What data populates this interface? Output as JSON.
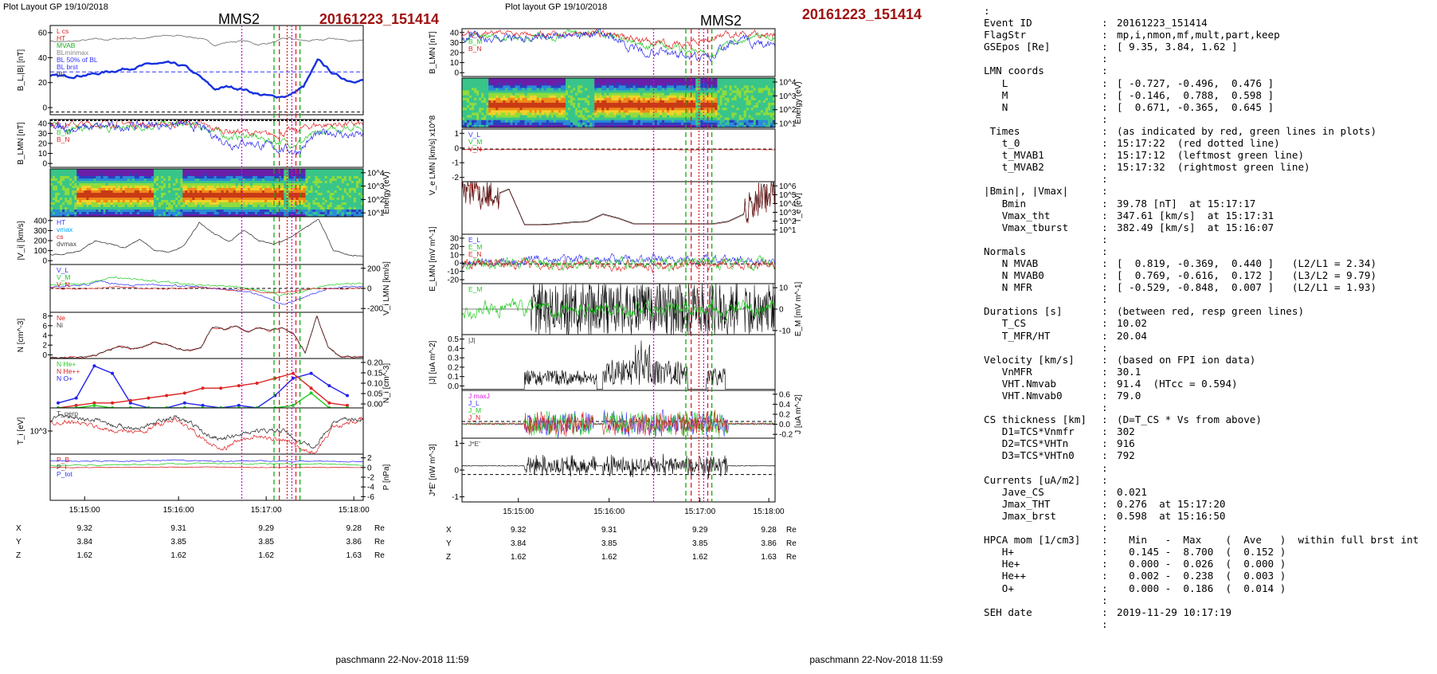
{
  "left_plot": {
    "top_label": "Plot Layout GP 19/10/2018",
    "title": "MMS2",
    "event": "20161223_151414",
    "footer": "paschmann 22-Nov-2018 11:59",
    "panels": [
      {
        "key": "b",
        "ylabel": "B_L,|B| [nT]",
        "ticks": [
          "60",
          "40",
          "20",
          "0"
        ],
        "legend": [
          [
            "L cs",
            "#d22"
          ],
          [
            "HT",
            "#d22"
          ],
          [
            "MVAB",
            "#2a2"
          ],
          [
            "BLminmax",
            "#888"
          ],
          [
            "BL 50% of BL",
            "#33f"
          ],
          [
            "BL brst",
            "#33f"
          ],
          [
            "|B|",
            "#444"
          ]
        ]
      },
      {
        "key": "blmn",
        "ylabel": "B_LMN [nT]",
        "ticks": [
          "40",
          "30",
          "20",
          "10",
          "0"
        ],
        "legend": [
          [
            "B_L",
            "#33f"
          ],
          [
            "B_M",
            "#2c2"
          ],
          [
            "B_N",
            "#d22"
          ]
        ]
      },
      {
        "key": "spec",
        "ylabel": "Energy (eV)",
        "ticks": [
          "10^4",
          "10^3",
          "10^2",
          "10^1"
        ]
      },
      {
        "key": "vi",
        "ylabel": "|V_i| [km/s]",
        "ticks": [
          "400",
          "300",
          "200",
          "100",
          "0"
        ],
        "legend": [
          [
            "HT",
            "#33f"
          ],
          [
            "vmax",
            "#0af"
          ],
          [
            "cs",
            "#d22"
          ],
          [
            "dvmax",
            "#444"
          ]
        ]
      },
      {
        "key": "vilmn",
        "ylabel": "V_i LMN [km/s]",
        "ticks": [
          "200",
          "0",
          "-200"
        ],
        "legend": [
          [
            "V_L",
            "#33f"
          ],
          [
            "V_M",
            "#2c2"
          ],
          [
            "V_N",
            "#d22"
          ]
        ]
      },
      {
        "key": "n",
        "ylabel": "N [cm^-3]",
        "ticks": [
          "8",
          "6",
          "4",
          "2",
          "0"
        ],
        "legend": [
          [
            "Ne",
            "#d22"
          ],
          [
            "Ni",
            "#444"
          ]
        ]
      },
      {
        "key": "hpca",
        "ylabel": "N_i [cm^-3]",
        "ticks": [
          "0.20",
          "0.15",
          "0.10",
          "0.05",
          "0.00"
        ],
        "legend": [
          [
            "N He+",
            "#2c2"
          ],
          [
            "N He++",
            "#d22"
          ],
          [
            "N O+",
            "#22e"
          ]
        ]
      },
      {
        "key": "ti",
        "ylabel": "T_i [eV]",
        "ticks": [
          "10^3"
        ],
        "legend": [
          [
            "T_perp",
            "#444"
          ]
        ]
      },
      {
        "key": "p",
        "ylabel": "P [nPa]",
        "ticks": [
          "2",
          "0",
          "-2",
          "-4",
          "-6"
        ],
        "legend": [
          [
            "P_B",
            "#d22"
          ],
          [
            "P_i",
            "#444"
          ],
          [
            "P_tot",
            "#33f"
          ]
        ]
      }
    ],
    "time_ticks": [
      "15:15:00",
      "15:16:00",
      "15:17:00",
      "15:18:00"
    ],
    "pos_rows": [
      [
        "X",
        "9.32",
        "9.31",
        "9.29",
        "9.28",
        "Re"
      ],
      [
        "Y",
        "3.84",
        "3.85",
        "3.85",
        "3.86",
        "Re"
      ],
      [
        "Z",
        "1.62",
        "1.62",
        "1.62",
        "1.63",
        "Re"
      ]
    ]
  },
  "mid_plot": {
    "top_label": "Plot layout GP 19/10/2018",
    "title": "MMS2",
    "event": "20161223_151414",
    "footer": "paschmann 22-Nov-2018 11:59",
    "panels": [
      {
        "key": "blmn",
        "ylabel": "B_LMN [nT]",
        "ticks": [
          "40",
          "30",
          "20",
          "10",
          "0"
        ],
        "legend": [
          [
            "B_L",
            "#33f"
          ],
          [
            "B_M",
            "#2c2"
          ],
          [
            "B_N",
            "#d22"
          ]
        ]
      },
      {
        "key": "spec",
        "ylabel": "Energy (eV)",
        "ticks": [
          "10^4",
          "10^3",
          "10^2",
          "10^1"
        ]
      },
      {
        "key": "ve",
        "ylabel": "V_e LMN [km/s] x10^8",
        "ticks": [
          "1",
          "0",
          "-1",
          "-2"
        ],
        "legend": [
          [
            "V_L",
            "#33f"
          ],
          [
            "V_M",
            "#2c2"
          ],
          [
            "V_N",
            "#d22"
          ]
        ]
      },
      {
        "key": "te",
        "ylabel": "T_e [eV]",
        "ticks": [
          "10^6",
          "10^5",
          "10^4",
          "10^3",
          "10^2",
          "10^1"
        ],
        "legend": [
          [
            "T_e",
            "#d22"
          ]
        ]
      },
      {
        "key": "elmn",
        "ylabel": "E_LMN [mV m^-1]",
        "ticks": [
          "30",
          "20",
          "10",
          "0",
          "-10",
          "-20"
        ],
        "legend": [
          [
            "E_L",
            "#33f"
          ],
          [
            "E_M",
            "#2c2"
          ],
          [
            "E_N",
            "#d22"
          ]
        ]
      },
      {
        "key": "em",
        "ylabel": "E_M [mV m^-1]",
        "ticks": [
          "10",
          "0",
          "-10"
        ],
        "legend": [
          [
            "E_M",
            "#2c2"
          ]
        ]
      },
      {
        "key": "j",
        "ylabel": "|J| [uA m^-2]",
        "ticks": [
          "0.5",
          "0.4",
          "0.3",
          "0.2",
          "0.1",
          "0.0"
        ],
        "legend": [
          [
            "|J|",
            "#444"
          ]
        ]
      },
      {
        "key": "jlmn",
        "ylabel": "J [uA m^-2]",
        "ticks": [
          "0.6",
          "0.4",
          "0.2",
          "0.0",
          "-0.2"
        ],
        "legend": [
          [
            "J maxJ",
            "#d2d"
          ],
          [
            "J_L",
            "#33f"
          ],
          [
            "J_M",
            "#2c2"
          ],
          [
            "J_N",
            "#d22"
          ]
        ]
      },
      {
        "key": "je",
        "ylabel": "J*E' [nW m^-3]",
        "ticks": [
          "1",
          "0",
          "-1"
        ],
        "legend": [
          [
            "J*E'",
            "#444"
          ]
        ]
      }
    ],
    "time_ticks": [
      "15:15:00",
      "15:16:00",
      "15:17:00",
      "15:18:00"
    ],
    "pos_rows": [
      [
        "X",
        "9.32",
        "9.31",
        "9.29",
        "9.28",
        "Re"
      ],
      [
        "Y",
        "3.84",
        "3.85",
        "3.85",
        "3.86",
        "Re"
      ],
      [
        "Z",
        "1.62",
        "1.62",
        "1.62",
        "1.63",
        "Re"
      ]
    ]
  },
  "text_panel": [
    [
      ":",
      "",
      ""
    ],
    [
      "Event ID",
      ":",
      "20161223_151414"
    ],
    [
      "FlagStr",
      ":",
      "mp,i,nmon,mf,mult,part,keep"
    ],
    [
      "GSEpos [Re]",
      ":",
      "[ 9.35, 3.84, 1.62 ]"
    ],
    [
      "",
      ":",
      ""
    ],
    [
      "LMN coords",
      ":",
      ""
    ],
    [
      "   L",
      ":",
      "[ -0.727, -0.496,  0.476 ]"
    ],
    [
      "   M",
      ":",
      "[ -0.146,  0.788,  0.598 ]"
    ],
    [
      "   N",
      ":",
      "[  0.671, -0.365,  0.645 ]"
    ],
    [
      "",
      ":",
      ""
    ],
    [
      " Times",
      ":",
      "(as indicated by red, green lines in plots)"
    ],
    [
      "   t_0",
      ":",
      "15:17:22  (red dotted line)"
    ],
    [
      "   t_MVAB1",
      ":",
      "15:17:12  (leftmost green line)"
    ],
    [
      "   t_MVAB2",
      ":",
      "15:17:32  (rightmost green line)"
    ],
    [
      "",
      ":",
      ""
    ],
    [
      "|Bmin|, |Vmax|",
      ":",
      ""
    ],
    [
      "   Bmin",
      ":",
      "39.78 [nT]  at 15:17:17"
    ],
    [
      "   Vmax_tht",
      ":",
      "347.61 [km/s]  at 15:17:31"
    ],
    [
      "   Vmax_tburst",
      ":",
      "382.49 [km/s]  at 15:16:07"
    ],
    [
      "",
      ":",
      ""
    ],
    [
      "Normals",
      ":",
      ""
    ],
    [
      "   N MVAB",
      ":",
      "[  0.819, -0.369,  0.440 ]   (L2/L1 = 2.34)"
    ],
    [
      "   N MVAB0",
      ":",
      "[  0.769, -0.616,  0.172 ]   (L3/L2 = 9.79)"
    ],
    [
      "   N MFR",
      ":",
      "[ -0.529, -0.848,  0.007 ]   (L2/L1 = 1.93)"
    ],
    [
      "",
      ":",
      ""
    ],
    [
      "Durations [s]",
      ":",
      "(between red, resp green lines)"
    ],
    [
      "   T_CS",
      ":",
      "10.02"
    ],
    [
      "   T_MFR/HT",
      ":",
      "20.04"
    ],
    [
      "",
      ":",
      ""
    ],
    [
      "Velocity [km/s]",
      ":",
      "(based on FPI ion data)"
    ],
    [
      "   VnMFR",
      ":",
      "30.1"
    ],
    [
      "   VHT.Nmvab",
      ":",
      "91.4  (HTcc = 0.594)"
    ],
    [
      "   VHT.Nmvab0",
      ":",
      "79.0"
    ],
    [
      "",
      ":",
      ""
    ],
    [
      "CS thickness [km]",
      ":",
      "(D=T_CS * Vs from above)"
    ],
    [
      "   D1=TCS*Vnmfr",
      ":",
      "302"
    ],
    [
      "   D2=TCS*VHTn",
      ":",
      "916"
    ],
    [
      "   D3=TCS*VHTn0",
      ":",
      "792"
    ],
    [
      "",
      ":",
      ""
    ],
    [
      "Currents [uA/m2]",
      ":",
      ""
    ],
    [
      "   Jave_CS",
      ":",
      "0.021"
    ],
    [
      "   Jmax_THT",
      ":",
      "0.276  at 15:17:20"
    ],
    [
      "   Jmax_brst",
      ":",
      "0.598  at 15:16:50"
    ],
    [
      "",
      ":",
      ""
    ],
    [
      "HPCA mom [1/cm3]",
      ":",
      "  Min   -  Max    (  Ave   )  within full brst int"
    ],
    [
      "   H+",
      ":",
      "  0.145 -  8.700  (  0.152 )"
    ],
    [
      "   He+",
      ":",
      "  0.000 -  0.026  (  0.000 )"
    ],
    [
      "   He++",
      ":",
      "  0.002 -  0.238  (  0.003 )"
    ],
    [
      "   O+",
      ":",
      "  0.000 -  0.186  (  0.014 )"
    ],
    [
      "",
      ":",
      ""
    ],
    [
      "SEH date",
      ":",
      "2019-11-29 10:17:19"
    ],
    [
      "",
      ":",
      ""
    ]
  ],
  "chart_data": [
    {
      "type": "line",
      "title": "MMS2",
      "subtitle": "20161223_151414",
      "xlabel": "",
      "x_ticks": [
        "15:15:00",
        "15:16:00",
        "15:17:00",
        "15:18:00"
      ],
      "series": [
        {
          "name": "B_L",
          "values": [
            30,
            30,
            31,
            32,
            34,
            36,
            38,
            40,
            40,
            38,
            30,
            20,
            22,
            20,
            16,
            14,
            15,
            22,
            43,
            32,
            27,
            27
          ]
        },
        {
          "name": "|B|",
          "values": [
            58,
            57,
            58,
            59,
            59,
            60,
            60,
            61,
            62,
            62,
            60,
            55,
            57,
            58,
            55,
            57,
            60,
            58,
            58,
            60,
            58,
            59
          ]
        }
      ],
      "marker_lines": {
        "red": [
          "15:17:17",
          "15:17:22",
          "15:17:27"
        ],
        "green": [
          "15:17:12",
          "15:17:32"
        ],
        "magenta": [
          "15:16:50"
        ]
      }
    },
    {
      "type": "line",
      "title": "MMS2",
      "subtitle": "20161223_151414",
      "series": [
        {
          "name": "|J|",
          "values": [
            0.02,
            0.02,
            0.03,
            0.1,
            0.15,
            0.12,
            0.05,
            0.2,
            0.35,
            0.25,
            0.2,
            0.1,
            0.05,
            0.2,
            0.02,
            0.01
          ]
        }
      ]
    }
  ]
}
